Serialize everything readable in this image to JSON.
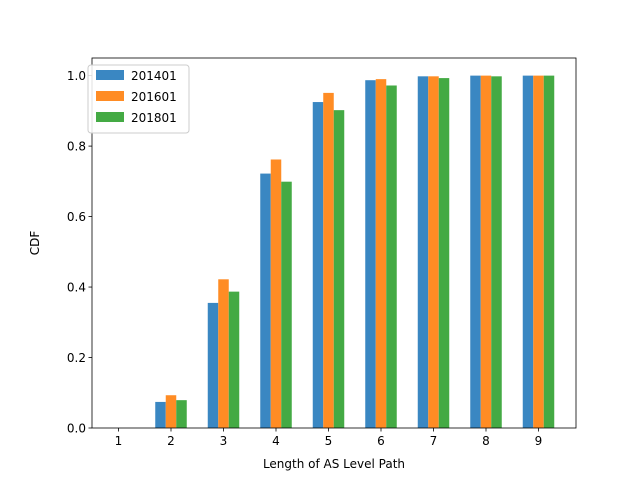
{
  "chart_data": {
    "type": "bar",
    "title": "",
    "xlabel": "Length of AS Level Path",
    "ylabel": "CDF",
    "categories": [
      "1",
      "2",
      "3",
      "4",
      "5",
      "6",
      "7",
      "8",
      "9"
    ],
    "ylim": [
      0,
      1.05
    ],
    "yticks": [
      "0.0",
      "0.2",
      "0.4",
      "0.6",
      "0.8",
      "1.0"
    ],
    "grid": false,
    "legend_position": "top-left",
    "series": [
      {
        "name": "201401",
        "color": "#3a87c2",
        "values": [
          0,
          0.074,
          0.355,
          0.722,
          0.925,
          0.987,
          0.998,
          1.0,
          1.0
        ]
      },
      {
        "name": "201601",
        "color": "#ff8c24",
        "values": [
          0,
          0.093,
          0.422,
          0.762,
          0.951,
          0.99,
          0.998,
          1.0,
          1.0
        ]
      },
      {
        "name": "201801",
        "color": "#44aa44",
        "values": [
          0,
          0.079,
          0.387,
          0.699,
          0.902,
          0.972,
          0.993,
          0.998,
          1.0
        ]
      }
    ]
  }
}
